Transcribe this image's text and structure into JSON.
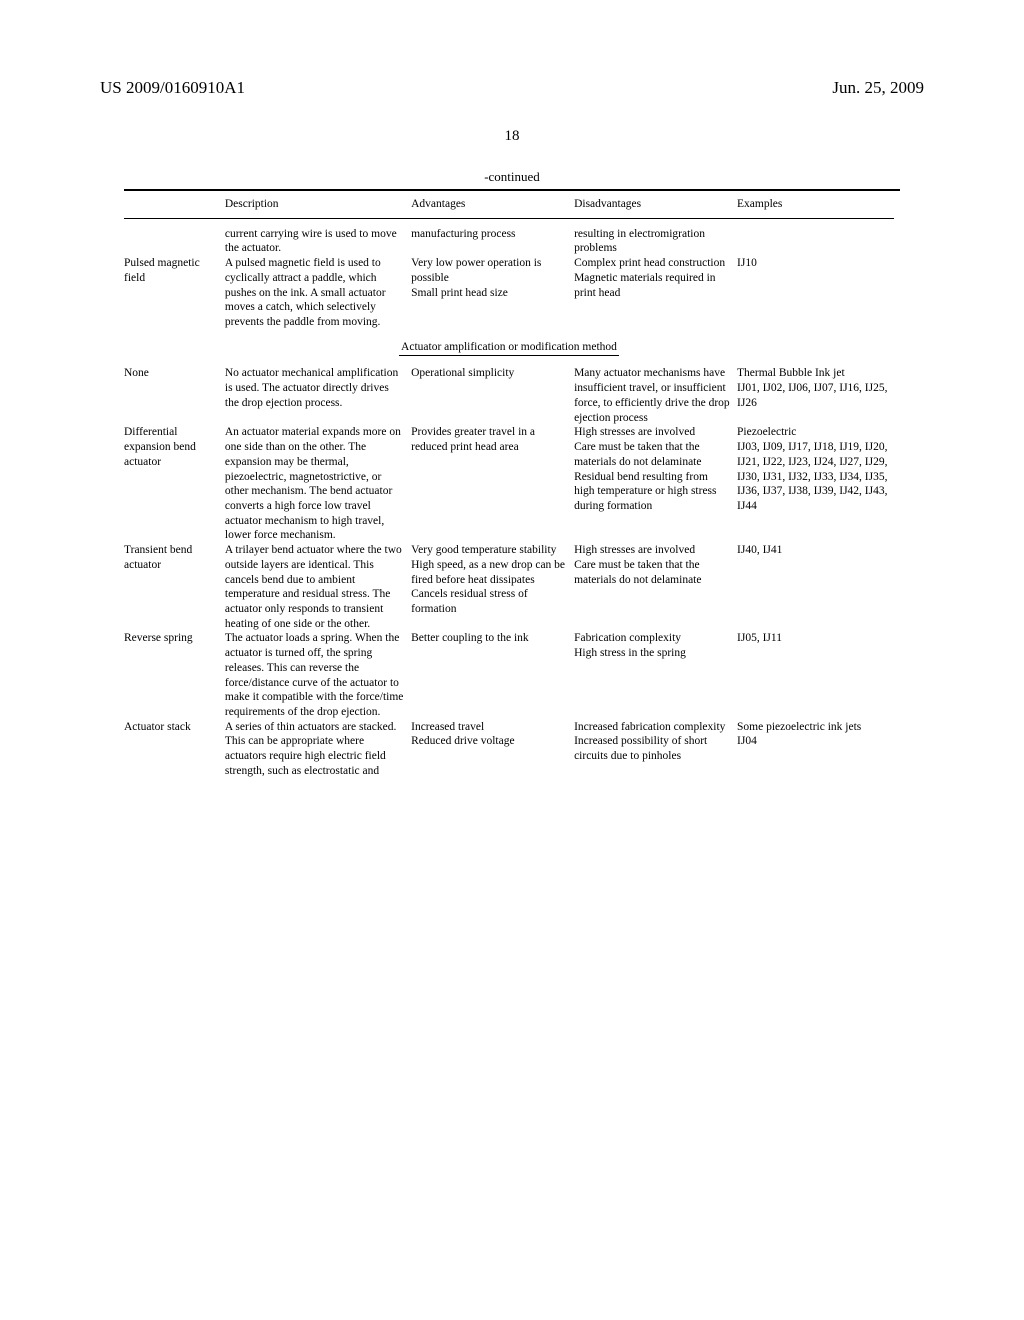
{
  "header": {
    "patent_id": "US 2009/0160910A1",
    "date": "Jun. 25, 2009"
  },
  "page_number": "18",
  "continued_label": "-continued",
  "columns": {
    "name": "",
    "description": "Description",
    "advantages": "Advantages",
    "disadvantages": "Disadvantages",
    "examples": "Examples"
  },
  "section_heading": "Actuator amplification or modification method",
  "top_rows": [
    {
      "name": "",
      "description": "current carrying wire is used to move the actuator.",
      "advantages": "manufacturing process",
      "disadvantages": "resulting in electromigration problems",
      "examples": ""
    },
    {
      "name": "Pulsed magnetic field",
      "description": "A pulsed magnetic field is used to cyclically attract a paddle, which pushes on the ink. A small actuator moves a catch, which selectively prevents the paddle from moving.",
      "advantages": "Very low power operation is possible\nSmall print head size",
      "disadvantages": "Complex print head construction\nMagnetic materials required in print head",
      "examples": "IJ10"
    }
  ],
  "section_rows": [
    {
      "name": "None",
      "description": "No actuator mechanical amplification is used. The actuator directly drives the drop ejection process.",
      "advantages": "Operational simplicity",
      "disadvantages": "Many actuator mechanisms have insufficient travel, or insufficient force, to efficiently drive the drop ejection process",
      "examples": "Thermal Bubble Ink jet\nIJ01, IJ02, IJ06, IJ07, IJ16, IJ25, IJ26"
    },
    {
      "name": "Differential expansion bend actuator",
      "description": "An actuator material expands more on one side than on the other. The expansion may be thermal, piezoelectric, magnetostrictive, or other mechanism. The bend actuator converts a high force low travel actuator mechanism to high travel, lower force mechanism.",
      "advantages": "Provides greater travel in a reduced print head area",
      "disadvantages": "High stresses are involved\nCare must be taken that the materials do not delaminate\nResidual bend resulting from high temperature or high stress during formation",
      "examples": "Piezoelectric\nIJ03, IJ09, IJ17, IJ18, IJ19, IJ20, IJ21, IJ22, IJ23, IJ24, IJ27, IJ29, IJ30, IJ31, IJ32, IJ33, IJ34, IJ35, IJ36, IJ37, IJ38, IJ39, IJ42, IJ43, IJ44"
    },
    {
      "name": "Transient bend actuator",
      "description": "A trilayer bend actuator where the two outside layers are identical. This cancels bend due to ambient temperature and residual stress. The actuator only responds to transient heating of one side or the other.",
      "advantages": "Very good temperature stability\nHigh speed, as a new drop can be fired before heat dissipates\nCancels residual stress of formation",
      "disadvantages": "High stresses are involved\nCare must be taken that the materials do not delaminate",
      "examples": "IJ40, IJ41"
    },
    {
      "name": "Reverse spring",
      "description": "The actuator loads a spring. When the actuator is turned off, the spring releases. This can reverse the force/distance curve of the actuator to make it compatible with the force/time requirements of the drop ejection.",
      "advantages": "Better coupling to the ink",
      "disadvantages": "Fabrication complexity\nHigh stress in the spring",
      "examples": "IJ05, IJ11"
    },
    {
      "name": "Actuator stack",
      "description": "A series of thin actuators are stacked. This can be appropriate where actuators require high electric field strength, such as electrostatic and",
      "advantages": "Increased travel\nReduced drive voltage",
      "disadvantages": "Increased fabrication complexity\nIncreased possibility of short circuits due to pinholes",
      "examples": "Some piezoelectric ink jets\nIJ04"
    }
  ]
}
